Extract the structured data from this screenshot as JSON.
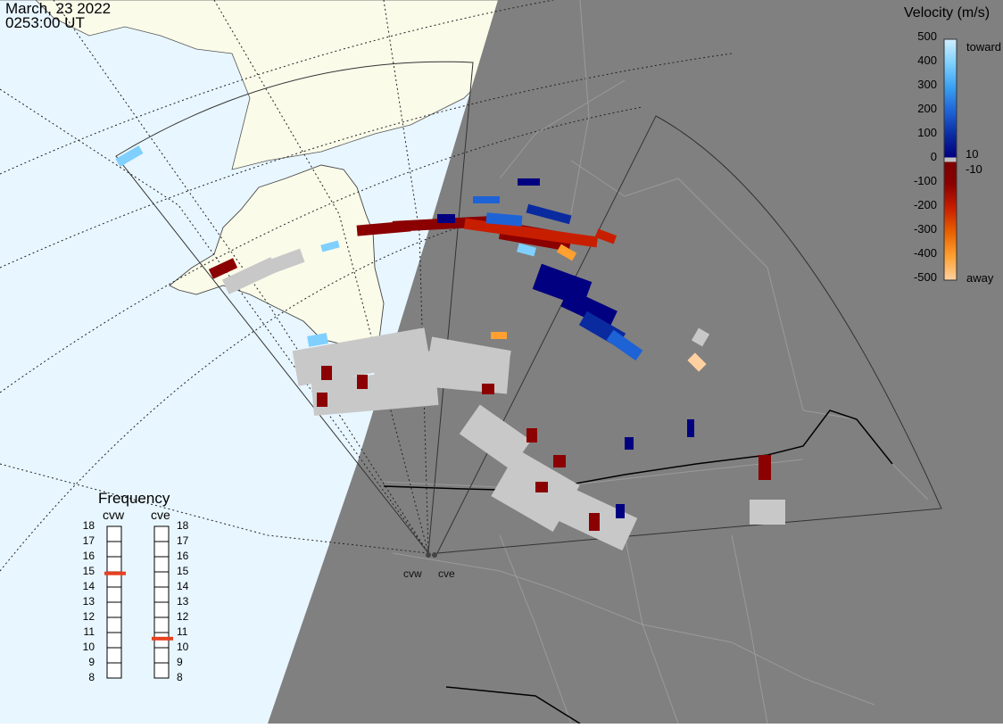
{
  "header": {
    "date": "March, 23 2022",
    "time": "0253:00 UT"
  },
  "colorbar": {
    "title": "Velocity (m/s)",
    "ticks": [
      "500",
      "400",
      "300",
      "200",
      "100",
      "10",
      "0",
      "-10",
      "-100",
      "-200",
      "-300",
      "-400",
      "-500"
    ],
    "toward_label": "toward",
    "away_label": "away",
    "colors": [
      "#cfeeff",
      "#7fd0ff",
      "#3aa0f0",
      "#1e63d6",
      "#0a2aa0",
      "#000080",
      "#c0c0c0",
      "#7a0000",
      "#8b0000",
      "#c81e00",
      "#e86000",
      "#ffa030",
      "#ffd0a0"
    ]
  },
  "frequency": {
    "title": "Frequency",
    "radars": [
      {
        "code": "cvw",
        "freq_mhz": 14.9
      },
      {
        "code": "cve",
        "freq_mhz": 10.6
      }
    ],
    "scale": [
      "18",
      "17",
      "16",
      "15",
      "14",
      "13",
      "12",
      "11",
      "10",
      "9",
      "8"
    ],
    "marker_color": "#e84020"
  },
  "radar_sites": [
    {
      "code": "cvw"
    },
    {
      "code": "cve"
    }
  ],
  "map": {
    "ocean_color": "#e8f6ff",
    "land_color": "#fbfbea",
    "night_color": "#808080",
    "gs_scatter_color": "#c8c8c8"
  }
}
